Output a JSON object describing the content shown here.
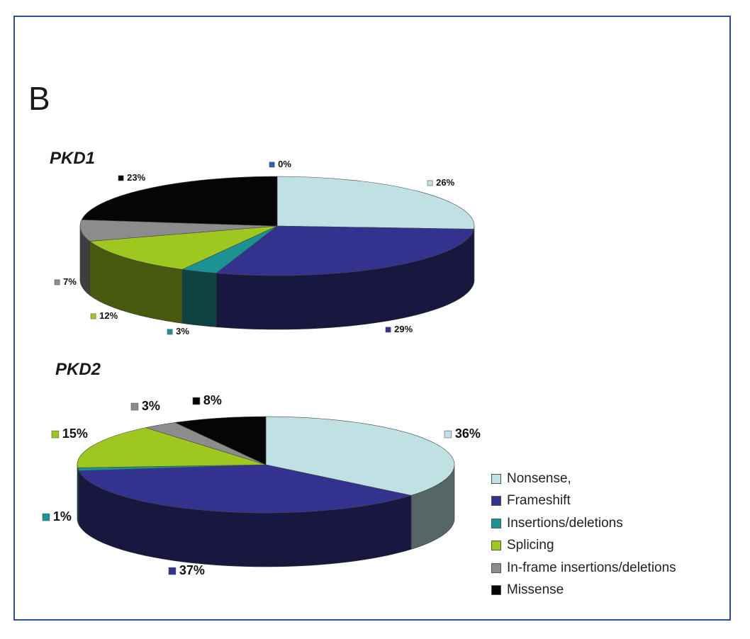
{
  "panel_letter": "B",
  "colors": {
    "Nonsense,": "#bfe1e3",
    "Frameshift": "#33338f",
    "Insertions/deletions": "#1b9393",
    "Splicing": "#9ec71f",
    "In-frame insertions/deletions": "#8c8c8c",
    "Missense": "#050505"
  },
  "legend": [
    "Nonsense,",
    "Frameshift",
    "Insertions/deletions",
    "Splicing",
    "In-frame insertions/deletions",
    "Missense"
  ],
  "chart_data": [
    {
      "type": "pie",
      "title": "PKD1",
      "labels": [
        "Nonsense,",
        "Frameshift",
        "Insertions/deletions",
        "Splicing",
        "In-frame insertions/deletions",
        "Missense",
        "0%"
      ],
      "categories": [
        "Nonsense,",
        "Frameshift",
        "Insertions/deletions",
        "Splicing",
        "In-frame insertions/deletions",
        "Missense"
      ],
      "values": [
        26,
        29,
        3,
        12,
        7,
        23
      ],
      "value_labels": [
        "26%",
        "29%",
        "3%",
        "12%",
        "7%",
        "23%"
      ],
      "extra_label": {
        "text": "0%",
        "category": "Frameshift"
      }
    },
    {
      "type": "pie",
      "title": "PKD2",
      "categories": [
        "Nonsense,",
        "Frameshift",
        "Insertions/deletions",
        "Splicing",
        "In-frame insertions/deletions",
        "Missense"
      ],
      "values": [
        36,
        37,
        1,
        15,
        3,
        8
      ],
      "value_labels": [
        "36%",
        "37%",
        "1%",
        "15%",
        "3%",
        "8%"
      ]
    }
  ]
}
